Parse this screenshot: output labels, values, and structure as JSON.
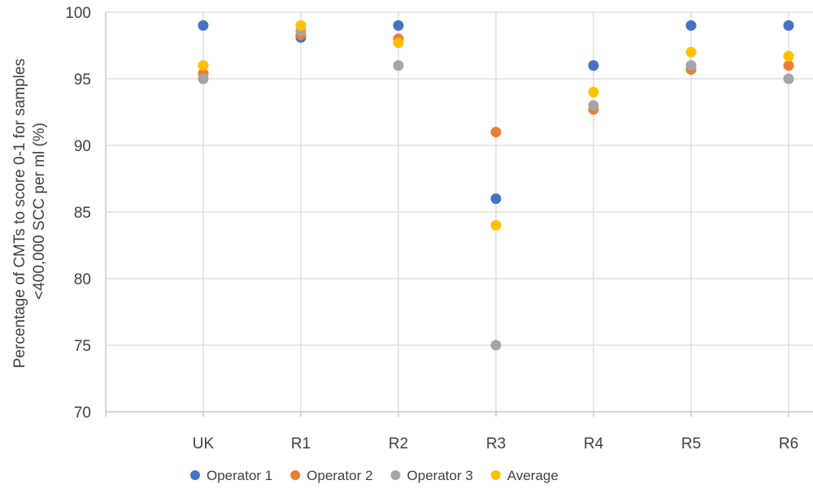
{
  "chart_data": {
    "type": "scatter",
    "title": "",
    "xlabel": "",
    "ylabel_lines": [
      "Percentage of CMTs to score 0-1 for samples",
      "<400,000 SCC per ml (%)"
    ],
    "categories": [
      "",
      "UK",
      "R1",
      "R2",
      "R3",
      "R4",
      "R5",
      "R6"
    ],
    "ylim": [
      70,
      100
    ],
    "yticks": [
      70,
      75,
      80,
      85,
      90,
      95,
      100
    ],
    "grid": true,
    "legend_position": "bottom",
    "series": [
      {
        "name": "Operator 1",
        "color": "#4472c4",
        "values": [
          null,
          99,
          98.1,
          99,
          86,
          96,
          99,
          99
        ]
      },
      {
        "name": "Operator 2",
        "color": "#ed7d31",
        "values": [
          null,
          95.4,
          98.3,
          98,
          91,
          92.7,
          95.7,
          96
        ]
      },
      {
        "name": "Operator 3",
        "color": "#a5a5a5",
        "values": [
          null,
          95,
          98.6,
          96,
          75,
          93,
          96,
          95
        ]
      },
      {
        "name": "Average",
        "color": "#ffc000",
        "values": [
          null,
          96,
          99,
          97.7,
          84,
          94,
          97,
          96.7
        ]
      }
    ]
  }
}
